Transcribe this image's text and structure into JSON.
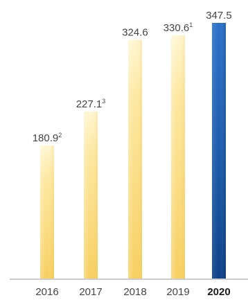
{
  "chart_data": {
    "type": "bar",
    "categories": [
      "2016",
      "2017",
      "2018",
      "2019",
      "2020"
    ],
    "values": [
      180.9,
      227.1,
      324.6,
      330.6,
      347.5
    ],
    "value_labels": [
      "180.9",
      "227.1",
      "324.6",
      "330.6",
      "347.5"
    ],
    "footnote_markers": [
      "2",
      "3",
      "",
      "1",
      ""
    ],
    "highlight_index": 4,
    "title": "",
    "xlabel": "",
    "ylabel": "",
    "ylim": [
      0,
      347.5
    ],
    "grid": false,
    "legend": "none",
    "colors": {
      "bar_light": "#fde8a0",
      "bar_mid": "#fad97a",
      "bar_base": "#f7cf5f",
      "highlight_top": "#2a70c8",
      "highlight_bottom": "#0b3f86",
      "axis": "#9a9a9a",
      "text": "#444444",
      "text_bold": "#1a1a1a"
    }
  }
}
